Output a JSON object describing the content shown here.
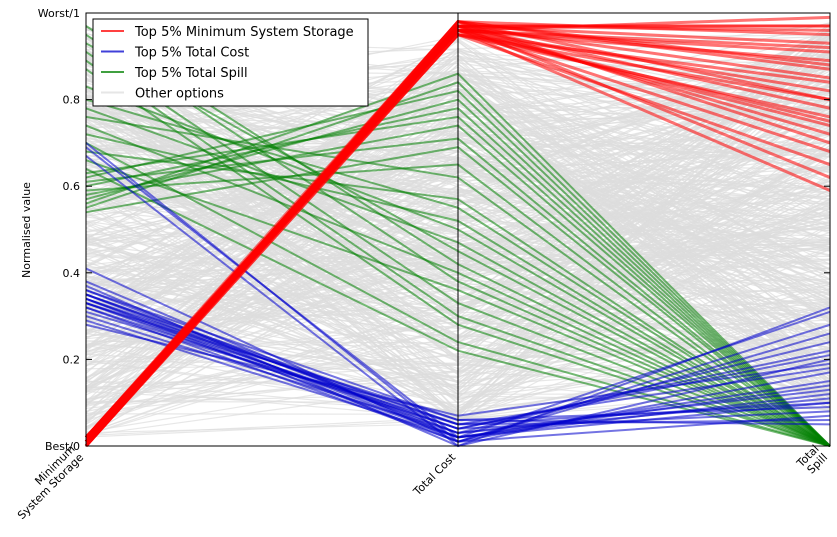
{
  "chart_data": {
    "type": "parallel_coordinates",
    "ylabel": "Normalised value",
    "ylim": [
      0,
      1
    ],
    "axes": [
      "Minimum\nSystem Storage",
      "Total Cost",
      "Total\nSpill"
    ],
    "y_ticks": [
      {
        "value": 0,
        "label": "Best/0"
      },
      {
        "value": 0.2,
        "label": "0.2"
      },
      {
        "value": 0.4,
        "label": "0.4"
      },
      {
        "value": 0.6,
        "label": "0.6"
      },
      {
        "value": 0.8,
        "label": "0.8"
      },
      {
        "value": 1,
        "label": "Worst/1"
      }
    ],
    "legend": {
      "placement": "top-left",
      "entries": [
        {
          "label": "Top 5% Minimum System Storage",
          "color": "#ff0000"
        },
        {
          "label": "Top 5% Total Cost",
          "color": "#0000cc"
        },
        {
          "label": "Top 5% Total Spill",
          "color": "#008000"
        },
        {
          "label": "Other options",
          "color": "#dddddd"
        }
      ]
    },
    "series": [
      {
        "group": "Top 5% Minimum System Storage",
        "color": "#ff0000",
        "lines": [
          [
            0.0,
            0.97,
            0.97
          ],
          [
            0.01,
            0.98,
            0.95
          ],
          [
            0.0,
            0.96,
            0.99
          ],
          [
            0.01,
            0.97,
            0.93
          ],
          [
            0.02,
            0.96,
            0.91
          ],
          [
            0.0,
            0.98,
            0.88
          ],
          [
            0.01,
            0.97,
            0.85
          ],
          [
            0.02,
            0.96,
            0.82
          ],
          [
            0.0,
            0.95,
            0.8
          ],
          [
            0.01,
            0.97,
            0.78
          ],
          [
            0.02,
            0.95,
            0.76
          ],
          [
            0.01,
            0.96,
            0.74
          ],
          [
            0.0,
            0.97,
            0.72
          ],
          [
            0.02,
            0.98,
            0.7
          ],
          [
            0.01,
            0.96,
            0.68
          ],
          [
            0.0,
            0.95,
            0.65
          ],
          [
            0.02,
            0.97,
            0.62
          ],
          [
            0.01,
            0.96,
            0.59
          ],
          [
            0.0,
            0.98,
            0.87
          ],
          [
            0.01,
            0.95,
            0.84
          ],
          [
            0.02,
            0.97,
            0.96
          ],
          [
            0.0,
            0.96,
            0.92
          ],
          [
            0.01,
            0.98,
            0.8
          ],
          [
            0.02,
            0.96,
            0.75
          ],
          [
            0.0,
            0.97,
            0.97
          ],
          [
            0.01,
            0.96,
            0.89
          ]
        ]
      },
      {
        "group": "Top 5% Total Cost",
        "color": "#0000cc",
        "lines": [
          [
            0.7,
            0.01,
            0.07
          ],
          [
            0.69,
            0.02,
            0.1
          ],
          [
            0.67,
            0.0,
            0.2
          ],
          [
            0.41,
            0.01,
            0.28
          ],
          [
            0.38,
            0.02,
            0.31
          ],
          [
            0.37,
            0.0,
            0.32
          ],
          [
            0.36,
            0.03,
            0.24
          ],
          [
            0.35,
            0.04,
            0.21
          ],
          [
            0.35,
            0.05,
            0.18
          ],
          [
            0.34,
            0.01,
            0.17
          ],
          [
            0.34,
            0.03,
            0.13
          ],
          [
            0.33,
            0.02,
            0.12
          ],
          [
            0.33,
            0.06,
            0.09
          ],
          [
            0.32,
            0.04,
            0.08
          ],
          [
            0.31,
            0.05,
            0.06
          ],
          [
            0.3,
            0.03,
            0.11
          ],
          [
            0.29,
            0.02,
            0.15
          ],
          [
            0.28,
            0.07,
            0.19
          ],
          [
            0.33,
            0.04,
            0.22
          ],
          [
            0.32,
            0.01,
            0.26
          ],
          [
            0.36,
            0.06,
            0.05
          ],
          [
            0.35,
            0.02,
            0.14
          ],
          [
            0.34,
            0.05,
            0.1
          ]
        ]
      },
      {
        "group": "Top 5% Total Spill",
        "color": "#008000",
        "lines": [
          [
            0.97,
            0.42,
            0.0
          ],
          [
            0.95,
            0.38,
            0.0
          ],
          [
            0.93,
            0.45,
            0.0
          ],
          [
            0.91,
            0.33,
            0.0
          ],
          [
            0.89,
            0.3,
            0.0
          ],
          [
            0.87,
            0.28,
            0.0
          ],
          [
            0.83,
            0.5,
            0.0
          ],
          [
            0.8,
            0.55,
            0.0
          ],
          [
            0.78,
            0.47,
            0.0
          ],
          [
            0.76,
            0.62,
            0.0
          ],
          [
            0.74,
            0.4,
            0.0
          ],
          [
            0.72,
            0.52,
            0.0
          ],
          [
            0.7,
            0.24,
            0.0
          ],
          [
            0.68,
            0.57,
            0.0
          ],
          [
            0.66,
            0.36,
            0.0
          ],
          [
            0.64,
            0.22,
            0.0
          ],
          [
            0.62,
            0.82,
            0.0
          ],
          [
            0.6,
            0.78,
            0.0
          ],
          [
            0.58,
            0.74,
            0.0
          ],
          [
            0.56,
            0.86,
            0.0
          ],
          [
            0.54,
            0.69,
            0.0
          ],
          [
            0.57,
            0.8,
            0.0
          ],
          [
            0.59,
            0.65,
            0.0
          ],
          [
            0.63,
            0.76,
            0.0
          ],
          [
            0.61,
            0.71,
            0.0
          ],
          [
            0.55,
            0.84,
            0.0
          ]
        ]
      }
    ]
  }
}
